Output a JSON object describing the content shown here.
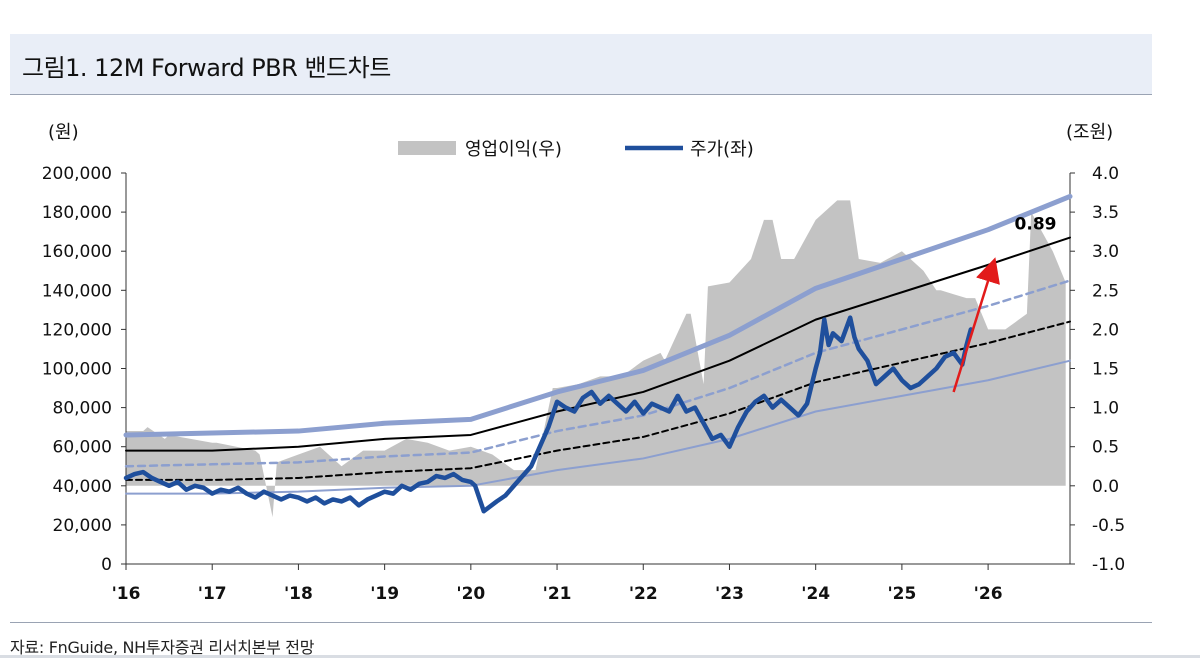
{
  "title": "그림1. 12M Forward PBR 밴드차트",
  "source": "자료: FnGuide, NH투자증권 리서치본부 전망",
  "colors": {
    "profit": "#c3c3c3",
    "price": "#1f4f9c",
    "band_outer": "#8c9fcf",
    "band_dash": "#8c9fcf",
    "band_black": "#000000",
    "arrow": "#e21b1b"
  },
  "chart_data": {
    "type": "line",
    "title": "그림1. 12M Forward PBR 밴드차트",
    "y_left_unit": "(원)",
    "y_right_unit": "(조원)",
    "ylim_left": [
      0,
      200000
    ],
    "ylim_right": [
      -1.0,
      4.0
    ],
    "y_left_ticks": [
      "0",
      "20,000",
      "40,000",
      "60,000",
      "80,000",
      "100,000",
      "120,000",
      "140,000",
      "160,000",
      "180,000",
      "200,000"
    ],
    "y_right_ticks": [
      "-1.0",
      "-0.5",
      "0.0",
      "0.5",
      "1.0",
      "1.5",
      "2.0",
      "2.5",
      "3.0",
      "3.5",
      "4.0"
    ],
    "x_tick_labels": [
      "'16",
      "'17",
      "'18",
      "'19",
      "'20",
      "'21",
      "'22",
      "'23",
      "'24",
      "'25",
      "'26"
    ],
    "xlim": [
      2016.0,
      2026.95
    ],
    "legend": [
      {
        "label": "영업이익(우)",
        "kind": "area"
      },
      {
        "label": "주가(좌)",
        "kind": "line"
      }
    ],
    "annotation": {
      "label": "0.89",
      "x": 2026.55,
      "y": 171000
    },
    "arrow": {
      "from": [
        2025.6,
        88000
      ],
      "to": [
        2026.05,
        152000
      ]
    },
    "operating_profit": {
      "axis": "right",
      "x": [
        2016.0,
        2016.2,
        2016.25,
        2016.45,
        2016.5,
        2017.0,
        2017.05,
        2017.5,
        2017.55,
        2017.7,
        2017.75,
        2018.0,
        2018.25,
        2018.5,
        2018.75,
        2019.0,
        2019.25,
        2019.5,
        2019.75,
        2020.0,
        2020.25,
        2020.5,
        2020.75,
        2020.95,
        2021.0,
        2021.25,
        2021.5,
        2021.75,
        2022.0,
        2022.2,
        2022.25,
        2022.5,
        2022.55,
        2022.7,
        2022.75,
        2023.0,
        2023.25,
        2023.4,
        2023.5,
        2023.6,
        2023.75,
        2024.0,
        2024.25,
        2024.4,
        2024.5,
        2024.75,
        2025.0,
        2025.25,
        2025.4,
        2025.45,
        2025.6,
        2025.75,
        2025.85,
        2026.0,
        2026.2,
        2026.45,
        2026.5,
        2026.75,
        2026.9
      ],
      "values": [
        0.7,
        0.7,
        0.75,
        0.6,
        0.65,
        0.55,
        0.55,
        0.45,
        0.4,
        -0.4,
        0.3,
        0.4,
        0.5,
        0.25,
        0.45,
        0.45,
        0.6,
        0.55,
        0.45,
        0.5,
        0.4,
        0.2,
        0.2,
        1.25,
        1.25,
        1.3,
        1.4,
        1.4,
        1.6,
        1.7,
        1.6,
        2.2,
        2.2,
        1.3,
        2.55,
        2.6,
        2.9,
        3.4,
        3.4,
        2.9,
        2.9,
        3.4,
        3.65,
        3.65,
        2.9,
        2.85,
        3.0,
        2.75,
        2.5,
        2.5,
        2.45,
        2.4,
        2.4,
        2.0,
        2.0,
        2.2,
        3.5,
        3.0,
        2.6
      ]
    },
    "series": [
      {
        "name": "주가(좌)",
        "axis": "left",
        "x": [
          2016.0,
          2016.1,
          2016.2,
          2016.3,
          2016.4,
          2016.5,
          2016.6,
          2016.7,
          2016.8,
          2016.9,
          2017.0,
          2017.1,
          2017.2,
          2017.3,
          2017.4,
          2017.5,
          2017.6,
          2017.7,
          2017.8,
          2017.9,
          2018.0,
          2018.1,
          2018.2,
          2018.3,
          2018.4,
          2018.5,
          2018.6,
          2018.7,
          2018.8,
          2018.9,
          2019.0,
          2019.1,
          2019.2,
          2019.3,
          2019.4,
          2019.5,
          2019.6,
          2019.7,
          2019.8,
          2019.9,
          2020.0,
          2020.05,
          2020.15,
          2020.3,
          2020.4,
          2020.5,
          2020.6,
          2020.7,
          2020.8,
          2020.9,
          2021.0,
          2021.1,
          2021.2,
          2021.3,
          2021.4,
          2021.5,
          2021.6,
          2021.7,
          2021.8,
          2021.9,
          2022.0,
          2022.1,
          2022.2,
          2022.3,
          2022.4,
          2022.5,
          2022.6,
          2022.7,
          2022.8,
          2022.9,
          2023.0,
          2023.1,
          2023.2,
          2023.3,
          2023.4,
          2023.5,
          2023.6,
          2023.7,
          2023.8,
          2023.9,
          2024.0,
          2024.05,
          2024.1,
          2024.15,
          2024.2,
          2024.3,
          2024.4,
          2024.45,
          2024.5,
          2024.6,
          2024.7,
          2024.8,
          2024.9,
          2025.0,
          2025.1,
          2025.2,
          2025.3,
          2025.4,
          2025.5,
          2025.6,
          2025.7,
          2025.75,
          2025.8
        ],
        "values": [
          44000,
          46000,
          47000,
          44000,
          42000,
          40000,
          42000,
          38000,
          40000,
          39000,
          36000,
          38000,
          37000,
          39000,
          36000,
          34000,
          37000,
          35000,
          33000,
          35000,
          34000,
          32000,
          34000,
          31000,
          33000,
          32000,
          34000,
          30000,
          33000,
          35000,
          37000,
          36000,
          40000,
          38000,
          41000,
          42000,
          45000,
          44000,
          46000,
          43000,
          42000,
          40000,
          27000,
          32000,
          35000,
          40000,
          45000,
          50000,
          60000,
          70000,
          83000,
          80000,
          78000,
          85000,
          88000,
          82000,
          86000,
          82000,
          78000,
          83000,
          77000,
          82000,
          80000,
          78000,
          86000,
          78000,
          80000,
          72000,
          64000,
          66000,
          60000,
          70000,
          78000,
          83000,
          86000,
          80000,
          84000,
          80000,
          76000,
          82000,
          100000,
          108000,
          125000,
          112000,
          118000,
          114000,
          126000,
          116000,
          110000,
          104000,
          92000,
          96000,
          100000,
          94000,
          90000,
          92000,
          96000,
          100000,
          106000,
          108000,
          102000,
          112000,
          120000
        ]
      },
      {
        "name": "PBR band outer upper",
        "axis": "left",
        "x": [
          2016.0,
          2017.0,
          2018.0,
          2019.0,
          2020.0,
          2021.0,
          2022.0,
          2023.0,
          2024.0,
          2025.0,
          2026.0,
          2026.95
        ],
        "values": [
          66000,
          67000,
          68000,
          72000,
          74000,
          88000,
          99000,
          117000,
          141000,
          156000,
          171000,
          188000
        ]
      },
      {
        "name": "PBR band 0.89",
        "axis": "left",
        "x": [
          2016.0,
          2017.0,
          2018.0,
          2019.0,
          2020.0,
          2021.0,
          2022.0,
          2023.0,
          2024.0,
          2025.0,
          2026.0,
          2026.95
        ],
        "values": [
          58000,
          58000,
          60000,
          64000,
          66000,
          78000,
          88000,
          104000,
          125000,
          139000,
          153000,
          167000
        ]
      },
      {
        "name": "PBR band mid (dashed blue)",
        "axis": "left",
        "x": [
          2016.0,
          2017.0,
          2018.0,
          2019.0,
          2020.0,
          2021.0,
          2022.0,
          2023.0,
          2024.0,
          2025.0,
          2026.0,
          2026.95
        ],
        "values": [
          50000,
          51000,
          52000,
          55000,
          57000,
          68000,
          76000,
          90000,
          108000,
          120000,
          132000,
          145000
        ]
      },
      {
        "name": "PBR band mid (dashed black)",
        "axis": "left",
        "x": [
          2016.0,
          2017.0,
          2018.0,
          2019.0,
          2020.0,
          2021.0,
          2022.0,
          2023.0,
          2024.0,
          2025.0,
          2026.0,
          2026.95
        ],
        "values": [
          43000,
          43000,
          44000,
          47000,
          49000,
          58000,
          65000,
          77000,
          93000,
          103000,
          113000,
          124000
        ]
      },
      {
        "name": "PBR band lower",
        "axis": "left",
        "x": [
          2016.0,
          2017.0,
          2018.0,
          2019.0,
          2020.0,
          2021.0,
          2022.0,
          2023.0,
          2024.0,
          2025.0,
          2026.0,
          2026.95
        ],
        "values": [
          36000,
          36000,
          37000,
          39000,
          40000,
          48000,
          54000,
          64000,
          78000,
          86000,
          94000,
          104000
        ]
      }
    ]
  }
}
